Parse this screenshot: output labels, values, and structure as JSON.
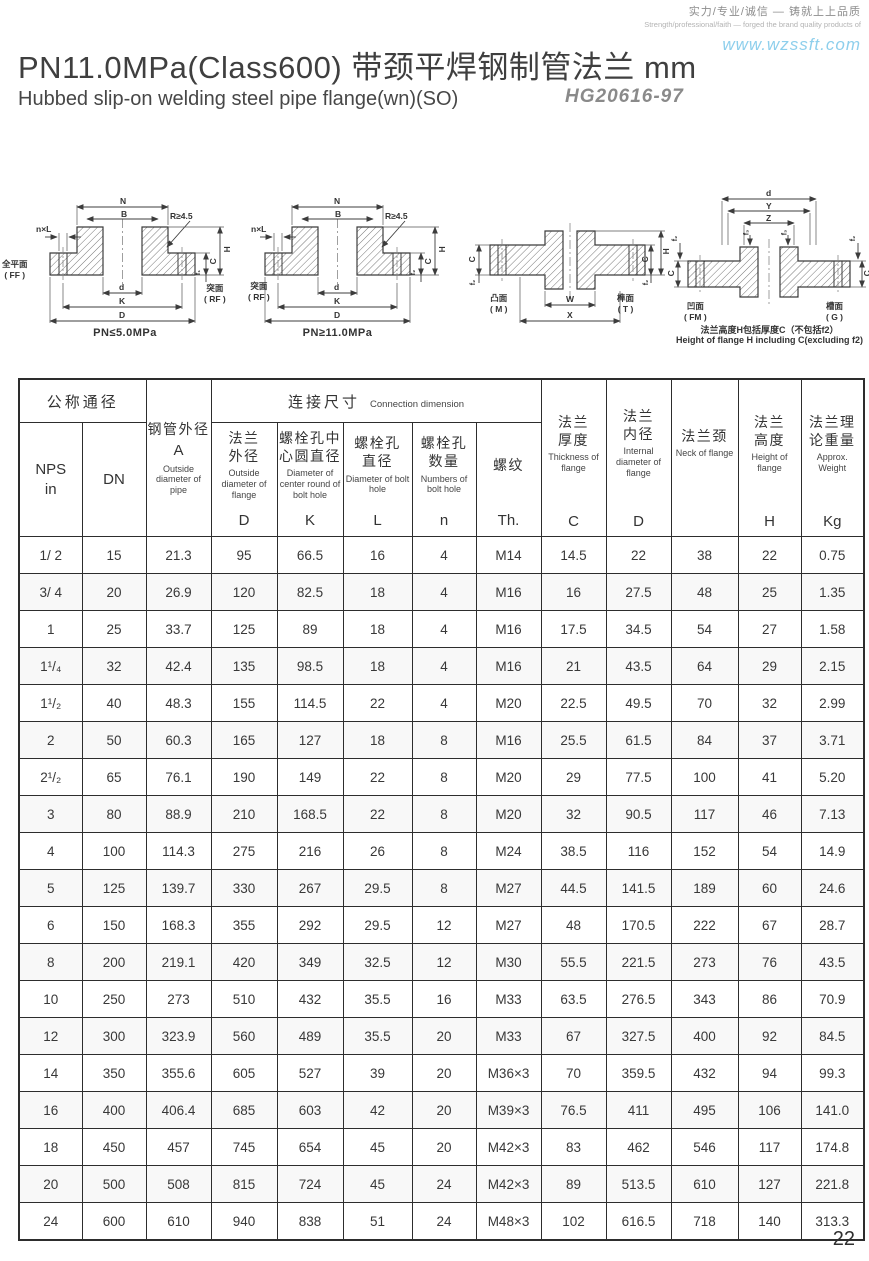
{
  "header": {
    "tagline_cn": "实力/专业/诚信 — 铸就上上品质",
    "tagline_en": "Strength/professional/faith — forged the brand quality products of",
    "website": "www.wzssft.com",
    "title": "PN11.0MPa(Class600) 带颈平焊钢制管法兰  mm",
    "subtitle": "Hubbed slip-on welding steel pipe flange(wn)(SO)",
    "standard": "HG20616-97"
  },
  "diagrams": [
    {
      "caption": "PN≤5.0MPa",
      "face_left": "全平面\n( FF )",
      "face_right": "突面\n( RF )",
      "n": "N",
      "b": "B",
      "nxl": "n×L",
      "r": "R≥4.5",
      "h": "H",
      "c": "C",
      "f": "f₁",
      "d_bore": "d",
      "k": "K",
      "d": "D"
    },
    {
      "caption": "PN≥11.0MPa",
      "face_left": "突面\n( RF )",
      "n": "N",
      "b": "B",
      "nxl": "n×L",
      "r": "R≥4.5",
      "h": "H",
      "c": "C",
      "f": "f₂",
      "d_bore": "d",
      "k": "K",
      "d": "D"
    },
    {
      "face_left": "凸面\n( M )",
      "face_right": "榫面\n( T )",
      "w": "W",
      "x": "X",
      "c": "C",
      "h": "H",
      "f": "f₂"
    },
    {
      "face_left": "凹面\n( FM )",
      "face_right": "槽面\n( G )",
      "d": "d",
      "y": "Y",
      "z": "Z",
      "c": "C",
      "f2": "f₂",
      "f3": "f₃",
      "caption_cn": "法兰高度H包括厚度C（不包括f2）",
      "caption_en": "Height of flange H including C(excluding f2)"
    }
  ],
  "table": {
    "group_nominal": "公称通径",
    "group_connection_cn": "连接尺寸",
    "group_connection_en": "Connection dimension",
    "cols": {
      "nps": "NPS\nin",
      "dn": "DN",
      "pipe_od": {
        "cn": "钢管外径",
        "sym": "A",
        "en": "Outside diameter of pipe"
      },
      "flange_od": {
        "cn": "法兰\n外径",
        "en": "Outside diameter of flange",
        "sym": "D"
      },
      "bolt_circle": {
        "cn": "螺栓孔中\n心圆直径",
        "en": "Diameter of center round of bolt hole",
        "sym": "K"
      },
      "bolt_dia": {
        "cn": "螺栓孔\n直径",
        "en": "Diameter of bolt hole",
        "sym": "L"
      },
      "bolt_num": {
        "cn": "螺栓孔\n数量",
        "en": "Numbers of bolt hole",
        "sym": "n"
      },
      "thread": {
        "cn": "螺纹",
        "sym": "Th."
      },
      "thickness": {
        "cn": "法兰\n厚度",
        "en": "Thickness of flange",
        "sym": "C"
      },
      "inner_dia": {
        "cn": "法兰\n内径",
        "en": "Internal diameter of flange",
        "sym": "D"
      },
      "neck": {
        "cn": "法兰颈",
        "en": "Neck of flange",
        "sym": ""
      },
      "height": {
        "cn": "法兰\n高度",
        "en": "Height of flange",
        "sym": "H"
      },
      "weight": {
        "cn": "法兰理\n论重量",
        "en": "Approx. Weight",
        "sym": "Kg"
      }
    },
    "rows": [
      [
        "1/ 2",
        "15",
        "21.3",
        "95",
        "66.5",
        "16",
        "4",
        "M14",
        "14.5",
        "22",
        "38",
        "22",
        "0.75"
      ],
      [
        "3/ 4",
        "20",
        "26.9",
        "120",
        "82.5",
        "18",
        "4",
        "M16",
        "16",
        "27.5",
        "48",
        "25",
        "1.35"
      ],
      [
        "1",
        "25",
        "33.7",
        "125",
        "89",
        "18",
        "4",
        "M16",
        "17.5",
        "34.5",
        "54",
        "27",
        "1.58"
      ],
      [
        "1¹/₄",
        "32",
        "42.4",
        "135",
        "98.5",
        "18",
        "4",
        "M16",
        "21",
        "43.5",
        "64",
        "29",
        "2.15"
      ],
      [
        "1¹/₂",
        "40",
        "48.3",
        "155",
        "114.5",
        "22",
        "4",
        "M20",
        "22.5",
        "49.5",
        "70",
        "32",
        "2.99"
      ],
      [
        "2",
        "50",
        "60.3",
        "165",
        "127",
        "18",
        "8",
        "M16",
        "25.5",
        "61.5",
        "84",
        "37",
        "3.71"
      ],
      [
        "2¹/₂",
        "65",
        "76.1",
        "190",
        "149",
        "22",
        "8",
        "M20",
        "29",
        "77.5",
        "100",
        "41",
        "5.20"
      ],
      [
        "3",
        "80",
        "88.9",
        "210",
        "168.5",
        "22",
        "8",
        "M20",
        "32",
        "90.5",
        "117",
        "46",
        "7.13"
      ],
      [
        "4",
        "100",
        "114.3",
        "275",
        "216",
        "26",
        "8",
        "M24",
        "38.5",
        "116",
        "152",
        "54",
        "14.9"
      ],
      [
        "5",
        "125",
        "139.7",
        "330",
        "267",
        "29.5",
        "8",
        "M27",
        "44.5",
        "141.5",
        "189",
        "60",
        "24.6"
      ],
      [
        "6",
        "150",
        "168.3",
        "355",
        "292",
        "29.5",
        "12",
        "M27",
        "48",
        "170.5",
        "222",
        "67",
        "28.7"
      ],
      [
        "8",
        "200",
        "219.1",
        "420",
        "349",
        "32.5",
        "12",
        "M30",
        "55.5",
        "221.5",
        "273",
        "76",
        "43.5"
      ],
      [
        "10",
        "250",
        "273",
        "510",
        "432",
        "35.5",
        "16",
        "M33",
        "63.5",
        "276.5",
        "343",
        "86",
        "70.9"
      ],
      [
        "12",
        "300",
        "323.9",
        "560",
        "489",
        "35.5",
        "20",
        "M33",
        "67",
        "327.5",
        "400",
        "92",
        "84.5"
      ],
      [
        "14",
        "350",
        "355.6",
        "605",
        "527",
        "39",
        "20",
        "M36×3",
        "70",
        "359.5",
        "432",
        "94",
        "99.3"
      ],
      [
        "16",
        "400",
        "406.4",
        "685",
        "603",
        "42",
        "20",
        "M39×3",
        "76.5",
        "411",
        "495",
        "106",
        "141.0"
      ],
      [
        "18",
        "450",
        "457",
        "745",
        "654",
        "45",
        "20",
        "M42×3",
        "83",
        "462",
        "546",
        "117",
        "174.8"
      ],
      [
        "20",
        "500",
        "508",
        "815",
        "724",
        "45",
        "24",
        "M42×3",
        "89",
        "513.5",
        "610",
        "127",
        "221.8"
      ],
      [
        "24",
        "600",
        "610",
        "940",
        "838",
        "51",
        "24",
        "M48×3",
        "102",
        "616.5",
        "718",
        "140",
        "313.3"
      ]
    ]
  },
  "page_number": "22"
}
